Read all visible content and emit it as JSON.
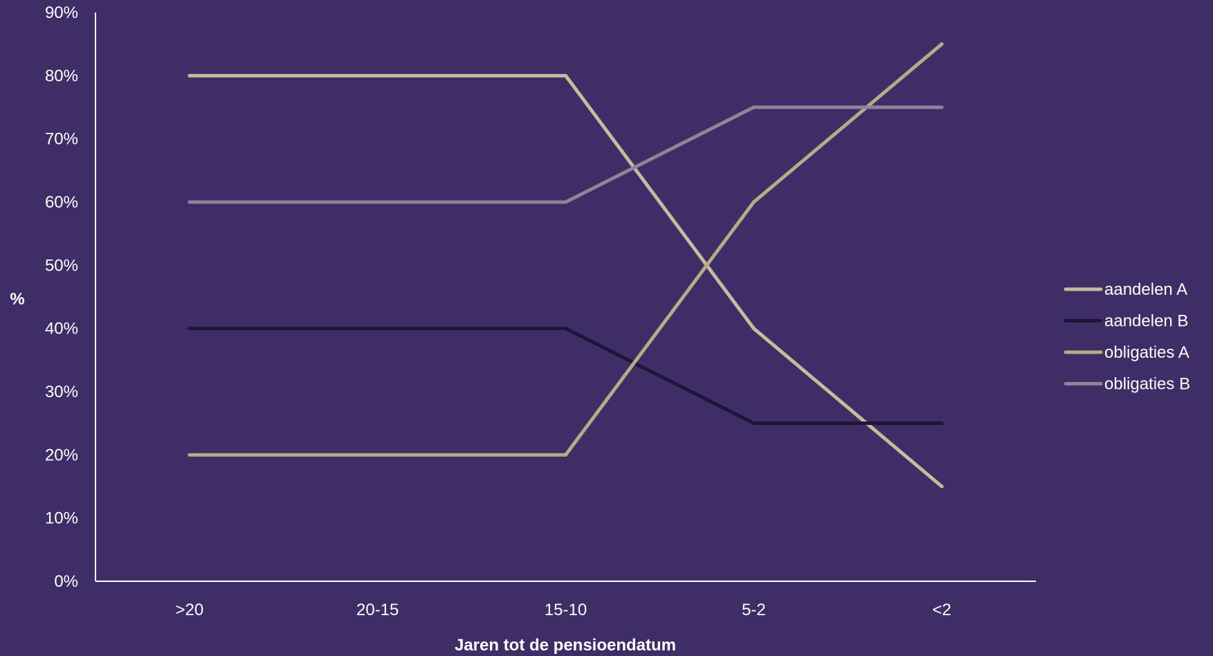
{
  "chart_data": {
    "type": "line",
    "title": "",
    "xlabel": "Jaren tot de pensioendatum",
    "ylabel": "%",
    "categories": [
      ">20",
      "20-15",
      "15-10",
      "5-2",
      "<2"
    ],
    "ylim": [
      0,
      90
    ],
    "yticks": [
      0,
      10,
      20,
      30,
      40,
      50,
      60,
      70,
      80,
      90
    ],
    "ytick_labels": [
      "0%",
      "10%",
      "20%",
      "30%",
      "40%",
      "50%",
      "60%",
      "70%",
      "80%",
      "90%"
    ],
    "grid": false,
    "legend_position": "right",
    "series": [
      {
        "name": "aandelen A",
        "color": "#c7bb9b",
        "values": [
          80,
          80,
          80,
          40,
          15
        ]
      },
      {
        "name": "aandelen B",
        "color": "#1f1538",
        "values": [
          40,
          40,
          40,
          25,
          25
        ]
      },
      {
        "name": "obligaties A",
        "color": "#b8aa84",
        "values": [
          20,
          20,
          20,
          60,
          85
        ]
      },
      {
        "name": "obligaties B",
        "color": "#8e8399",
        "values": [
          60,
          60,
          60,
          75,
          75
        ]
      }
    ]
  },
  "colors": {
    "background": "#3f2d68",
    "axis": "#ffffff",
    "text": "#ffffff"
  }
}
